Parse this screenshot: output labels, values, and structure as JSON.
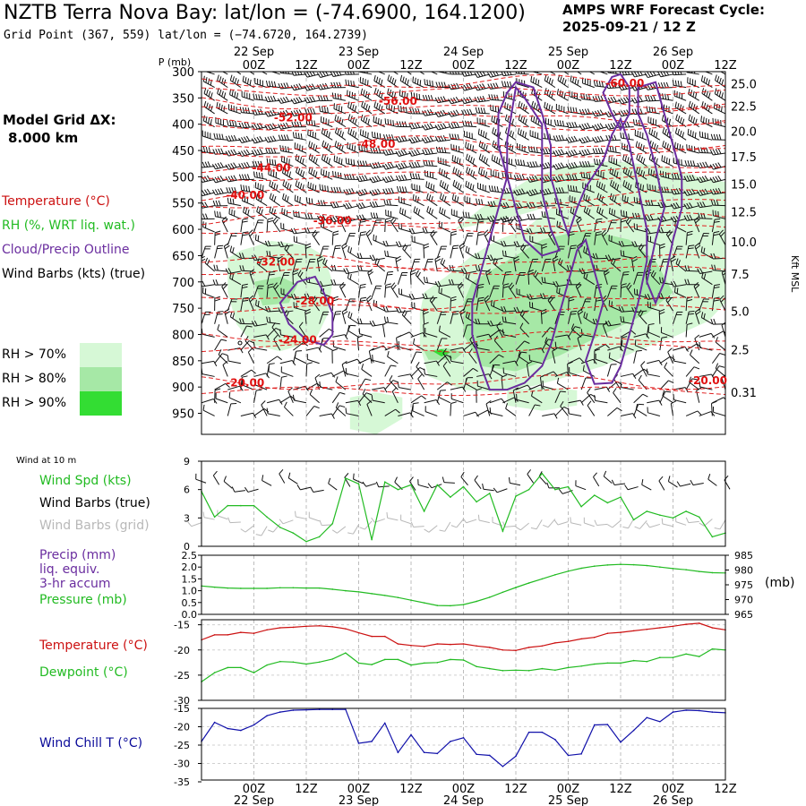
{
  "header": {
    "title": "NZTB Terra Nova Bay:  lat/lon = (-74.6900, 164.1200)",
    "grid_point": "Grid Point (367, 559) lat/lon = (−74.6720, 164.2739)",
    "cycle_line1": "AMPS WRF Forecast Cycle:",
    "cycle_line2": "2025-09-21 / 12  Z"
  },
  "left_panel": {
    "model_grid_line1": "Model Grid ΔX:",
    "model_grid_line2": "8.000 km",
    "legend_temperature": "Temperature (°C)",
    "legend_rh": "RH (%, WRT liq. wat.)",
    "legend_cloud": "Cloud/Precip Outline",
    "legend_wind": "Wind Barbs (kts) (true)",
    "rh_thresholds": [
      "RH > 70%",
      "RH > 80%",
      "RH > 90%"
    ]
  },
  "colors": {
    "rh70": "#d6f8d6",
    "rh80": "#a6e8a6",
    "rh90": "#33dd33",
    "temperature": "#cc1111",
    "green_line": "#22bb22",
    "cloud": "#6a2d9f",
    "wind_chill": "#1111aa",
    "gray_barb": "#b8b8b8"
  },
  "time_axis": {
    "top_unit": "P (mb)",
    "tick_labels": [
      "00Z",
      "12Z",
      "00Z",
      "12Z",
      "00Z",
      "12Z",
      "00Z",
      "12Z",
      "00Z",
      "12Z"
    ],
    "date_labels": [
      "22 Sep",
      "23 Sep",
      "24 Sep",
      "25 Sep",
      "26 Sep"
    ]
  },
  "panel_labels": {
    "wind10_title": "Wind at 10 m",
    "wind_spd": "Wind Spd (kts)",
    "wind_barbs_true": "Wind Barbs (true)",
    "wind_barbs_grid": "Wind Barbs (grid)",
    "precip1": "Precip (mm)",
    "precip2": "liq. equiv.",
    "precip3": "3-hr accum",
    "pressure": "Pressure (mb)",
    "pressure_unit": "(mb)",
    "temperature": "Temperature (°C)",
    "dewpoint": "Dewpoint (°C)",
    "windchill": "Wind Chill T (°C)"
  },
  "chart_data": [
    {
      "type": "time-height",
      "title": "Time-height cross section",
      "y_axis_label": "P (mb)",
      "y_range": [
        300,
        990
      ],
      "pressure_ticks": [
        300,
        350,
        400,
        450,
        500,
        550,
        600,
        650,
        700,
        750,
        800,
        850,
        900,
        950
      ],
      "right_axis_label": "Kft MSL",
      "height_ticks": [
        "25.0",
        "22.5",
        "20.0",
        "17.5",
        "15.0",
        "12.5",
        "10.0",
        "7.5",
        "5.0",
        "2.5",
        "0.31"
      ],
      "x_range_hours": [
        -12,
        108
      ],
      "isotherm_labels": [
        {
          "text": "-60.00",
          "t": 85,
          "p": 322
        },
        {
          "text": "-56.00",
          "t": 33,
          "p": 356
        },
        {
          "text": "-52.00",
          "t": 9,
          "p": 388
        },
        {
          "text": "-48.00",
          "t": 28,
          "p": 438
        },
        {
          "text": "-44.00",
          "t": 4,
          "p": 483
        },
        {
          "text": "-40.00",
          "t": -2,
          "p": 535
        },
        {
          "text": "-36.00",
          "t": 18,
          "p": 584
        },
        {
          "text": "-32.00",
          "t": 5,
          "p": 662
        },
        {
          "text": "-28.00",
          "t": 14,
          "p": 736
        },
        {
          "text": "-24.00",
          "t": 10,
          "p": 810
        },
        {
          "text": "-20.00",
          "t": -2,
          "p": 892
        },
        {
          "text": "-20.00",
          "t": 104,
          "p": 888
        }
      ]
    },
    {
      "type": "line",
      "title": "Wind at 10 m",
      "ylim": [
        0,
        9
      ],
      "yticks": [
        "0",
        "3",
        "6",
        "9"
      ],
      "series": [
        {
          "name": "Wind Spd (kts)",
          "x": [
            -12,
            -9,
            -6,
            -3,
            0,
            3,
            6,
            9,
            12,
            15,
            18,
            21,
            24,
            27,
            30,
            33,
            36,
            39,
            42,
            45,
            48,
            51,
            54,
            57,
            60,
            63,
            66,
            69,
            72,
            75,
            78,
            81,
            84,
            87,
            90,
            93,
            96,
            99,
            102,
            105,
            108
          ],
          "values": [
            5.8,
            3.1,
            4.3,
            4.3,
            4.3,
            3.1,
            2.0,
            1.4,
            0.5,
            1.0,
            2.4,
            7.2,
            6.6,
            0.7,
            6.8,
            6.0,
            6.5,
            3.7,
            6.5,
            5.2,
            6.3,
            4.7,
            5.6,
            1.6,
            5.3,
            6.0,
            7.7,
            6.0,
            6.3,
            4.2,
            5.4,
            4.6,
            5.2,
            2.8,
            3.7,
            3.3,
            3.0,
            3.7,
            3.1,
            1.0,
            1.4
          ]
        }
      ]
    },
    {
      "type": "line",
      "title": "Precip / Pressure",
      "left_ylim": [
        0,
        2.5
      ],
      "left_yticks": [
        "0.0",
        "0.5",
        "1.0",
        "1.5",
        "2.0",
        "2.5"
      ],
      "right_ylim": [
        965,
        985
      ],
      "right_yticks": [
        "965",
        "970",
        "975",
        "980",
        "985"
      ],
      "series": [
        {
          "name": "Pressure (mb)",
          "x": [
            -12,
            -9,
            -6,
            -3,
            0,
            3,
            6,
            9,
            12,
            15,
            18,
            21,
            24,
            27,
            30,
            33,
            36,
            39,
            42,
            45,
            48,
            51,
            54,
            57,
            60,
            63,
            66,
            69,
            72,
            75,
            78,
            81,
            84,
            87,
            90,
            93,
            96,
            99,
            102,
            105,
            108
          ],
          "values": [
            974.6,
            974.2,
            973.9,
            973.8,
            973.8,
            973.8,
            974.0,
            974.0,
            973.9,
            973.9,
            973.5,
            973.0,
            972.6,
            972.0,
            971.4,
            970.7,
            969.8,
            968.9,
            968.0,
            967.9,
            968.3,
            969.4,
            970.8,
            972.5,
            974.1,
            975.6,
            977.0,
            978.4,
            979.6,
            980.6,
            981.3,
            981.7,
            981.9,
            981.8,
            981.5,
            981.0,
            980.5,
            980.1,
            979.5,
            979.1,
            979.0
          ]
        }
      ]
    },
    {
      "type": "line",
      "title": "Temperature / Dewpoint",
      "ylim": [
        -30,
        -14
      ],
      "yticks": [
        "-15",
        "-20",
        "-25",
        "-30"
      ],
      "series": [
        {
          "name": "Temperature (°C)",
          "x": [
            -12,
            -9,
            -6,
            -3,
            0,
            3,
            6,
            9,
            12,
            15,
            18,
            21,
            24,
            27,
            30,
            33,
            36,
            39,
            42,
            45,
            48,
            51,
            54,
            57,
            60,
            63,
            66,
            69,
            72,
            75,
            78,
            81,
            84,
            87,
            90,
            93,
            96,
            99,
            102,
            105,
            108
          ],
          "values": [
            -18.0,
            -17.0,
            -17.0,
            -16.5,
            -16.7,
            -16.0,
            -15.6,
            -15.5,
            -15.3,
            -15.2,
            -15.4,
            -15.8,
            -16.6,
            -17.3,
            -17.3,
            -18.8,
            -19.1,
            -19.3,
            -18.8,
            -18.9,
            -18.8,
            -19.2,
            -19.5,
            -20.0,
            -20.1,
            -19.5,
            -19.2,
            -18.6,
            -18.3,
            -17.8,
            -17.5,
            -16.7,
            -16.5,
            -16.2,
            -15.9,
            -15.6,
            -15.3,
            -14.9,
            -14.7,
            -15.6,
            -16.0
          ]
        },
        {
          "name": "Dewpoint (°C)",
          "x": [
            -12,
            -9,
            -6,
            -3,
            0,
            3,
            6,
            9,
            12,
            15,
            18,
            21,
            24,
            27,
            30,
            33,
            36,
            39,
            42,
            45,
            48,
            51,
            54,
            57,
            60,
            63,
            66,
            69,
            72,
            75,
            78,
            81,
            84,
            87,
            90,
            93,
            96,
            99,
            102,
            105,
            108
          ],
          "values": [
            -26.3,
            -24.5,
            -23.5,
            -23.5,
            -24.5,
            -23.0,
            -22.3,
            -22.4,
            -22.8,
            -22.4,
            -21.8,
            -20.6,
            -22.6,
            -22.9,
            -21.9,
            -21.9,
            -23.0,
            -22.6,
            -22.5,
            -21.9,
            -22.0,
            -23.3,
            -23.7,
            -24.1,
            -24.0,
            -24.1,
            -23.7,
            -24.0,
            -23.5,
            -23.2,
            -22.8,
            -22.6,
            -22.6,
            -22.1,
            -22.3,
            -21.5,
            -21.5,
            -20.8,
            -21.3,
            -19.8,
            -20.0
          ]
        }
      ]
    },
    {
      "type": "line",
      "title": "Wind Chill",
      "ylim": [
        -35,
        -15
      ],
      "yticks": [
        "-15",
        "-20",
        "-25",
        "-30",
        "-35"
      ],
      "series": [
        {
          "name": "Wind Chill T (°C)",
          "x": [
            -12,
            -9,
            -6,
            -3,
            0,
            3,
            6,
            9,
            12,
            15,
            18,
            21,
            24,
            27,
            30,
            33,
            36,
            39,
            42,
            45,
            48,
            51,
            54,
            57,
            60,
            63,
            66,
            69,
            72,
            75,
            78,
            81,
            84,
            87,
            90,
            93,
            96,
            99,
            102,
            105,
            108
          ],
          "values": [
            -24.0,
            -18.8,
            -20.5,
            -21.0,
            -19.5,
            -17.0,
            -16.0,
            -15.5,
            -15.4,
            -15.3,
            -15.3,
            -15.3,
            -24.5,
            -24.0,
            -19.0,
            -27.0,
            -22.2,
            -27.0,
            -27.3,
            -24.0,
            -23.0,
            -27.5,
            -27.8,
            -30.8,
            -28.0,
            -21.5,
            -21.5,
            -23.5,
            -27.8,
            -27.4,
            -19.5,
            -19.4,
            -24.2,
            -21.0,
            -17.5,
            -18.6,
            -16.0,
            -15.5,
            -15.6,
            -16.0,
            -16.2
          ]
        }
      ]
    }
  ]
}
